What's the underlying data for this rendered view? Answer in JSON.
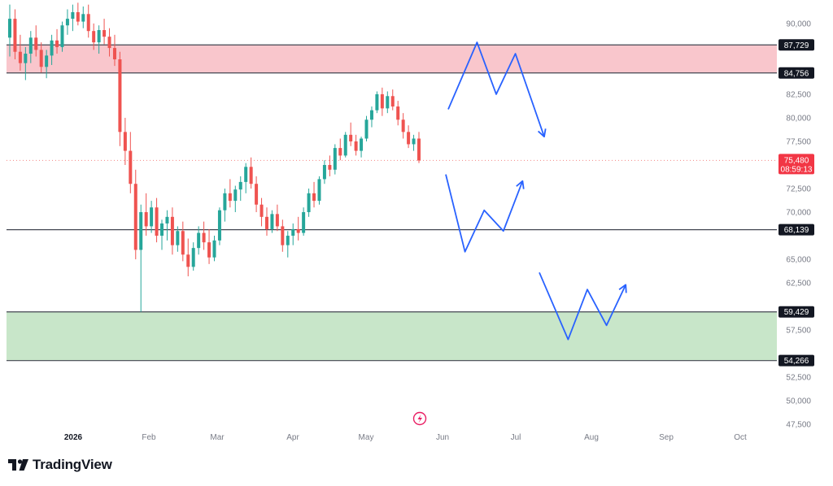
{
  "brand": {
    "name": "TradingView",
    "icon": "tradingview-logo-icon"
  },
  "colors": {
    "up": "#26a69a",
    "down": "#ef5350",
    "resistance_zone": "#f9c6cc",
    "support_zone": "#c8e6c9",
    "level_line": "#434651",
    "level_label_bg": "#131722",
    "price_label_bg": "#f23645",
    "projection": "#2962ff",
    "axis_text": "#787b86"
  },
  "chart_data": {
    "type": "candlestick",
    "y_axis": {
      "ticks": [
        "90,000",
        "82,500",
        "80,000",
        "77,500",
        "72,500",
        "70,000",
        "65,000",
        "62,500",
        "57,500",
        "52,500",
        "50,000",
        "47,500"
      ],
      "tick_values": [
        90000,
        82500,
        80000,
        77500,
        72500,
        70000,
        65000,
        62500,
        57500,
        52500,
        50000,
        47500
      ],
      "range": [
        47000,
        91800
      ]
    },
    "x_axis": {
      "labels": [
        "2026",
        "Feb",
        "Mar",
        "Apr",
        "May",
        "Jun",
        "Jul",
        "Aug",
        "Sep",
        "Oct"
      ],
      "bold_label": "2026"
    },
    "levels": [
      {
        "value": 87729,
        "label": "87,729"
      },
      {
        "value": 84756,
        "label": "84,756"
      },
      {
        "value": 68139,
        "label": "68,139"
      },
      {
        "value": 59429,
        "label": "59,429"
      },
      {
        "value": 54266,
        "label": "54,266"
      }
    ],
    "zones": [
      {
        "type": "resistance",
        "from": 84756,
        "to": 87729
      },
      {
        "type": "support",
        "from": 54266,
        "to": 59429
      }
    ],
    "current_price": {
      "value": 75480,
      "label": "75,480",
      "countdown": "08:59:13"
    },
    "candles": [
      [
        88500,
        92000,
        86500,
        90500
      ],
      [
        90500,
        91500,
        86200,
        87000
      ],
      [
        87000,
        88800,
        85000,
        85800
      ],
      [
        85800,
        87500,
        84000,
        86800
      ],
      [
        86800,
        89200,
        85800,
        88500
      ],
      [
        88500,
        89800,
        86500,
        87200
      ],
      [
        87200,
        88000,
        84800,
        85400
      ],
      [
        85400,
        87200,
        84200,
        86600
      ],
      [
        86600,
        88800,
        85600,
        88200
      ],
      [
        88200,
        89400,
        86800,
        87500
      ],
      [
        87500,
        90200,
        87000,
        89800
      ],
      [
        89800,
        91500,
        88800,
        90500
      ],
      [
        90500,
        92000,
        89200,
        91200
      ],
      [
        91200,
        92200,
        89800,
        90200
      ],
      [
        90200,
        91800,
        89500,
        91000
      ],
      [
        91000,
        92000,
        88500,
        89200
      ],
      [
        89200,
        90000,
        87200,
        88000
      ],
      [
        88000,
        89800,
        86800,
        89300
      ],
      [
        89300,
        90500,
        87800,
        88600
      ],
      [
        88600,
        89500,
        86500,
        87400
      ],
      [
        87400,
        88800,
        85500,
        86200
      ],
      [
        86200,
        87000,
        77000,
        78500
      ],
      [
        78500,
        80000,
        75000,
        76500
      ],
      [
        76500,
        78500,
        72000,
        73000
      ],
      [
        73000,
        74500,
        65000,
        66000
      ],
      [
        66000,
        70800,
        59429,
        70000
      ],
      [
        70000,
        72000,
        67500,
        68500
      ],
      [
        68500,
        71200,
        67800,
        70500
      ],
      [
        70500,
        71500,
        66800,
        67500
      ],
      [
        67500,
        69200,
        66000,
        68800
      ],
      [
        68800,
        70200,
        67000,
        69500
      ],
      [
        69500,
        70500,
        65500,
        66500
      ],
      [
        66500,
        68500,
        65800,
        68000
      ],
      [
        68000,
        69000,
        64800,
        65500
      ],
      [
        65500,
        67200,
        63200,
        64200
      ],
      [
        64200,
        66800,
        63800,
        66200
      ],
      [
        66200,
        68500,
        65500,
        67800
      ],
      [
        67800,
        69000,
        66000,
        66800
      ],
      [
        66800,
        68200,
        64500,
        65200
      ],
      [
        65200,
        67500,
        64800,
        67000
      ],
      [
        67000,
        70500,
        66500,
        70200
      ],
      [
        70200,
        72500,
        69000,
        72000
      ],
      [
        72000,
        73500,
        70500,
        71200
      ],
      [
        71200,
        72800,
        70000,
        72400
      ],
      [
        72400,
        73800,
        71200,
        73200
      ],
      [
        73200,
        75200,
        72000,
        74800
      ],
      [
        74800,
        75800,
        72500,
        73000
      ],
      [
        73000,
        73800,
        70000,
        70800
      ],
      [
        70800,
        71500,
        68500,
        69500
      ],
      [
        69500,
        70500,
        67500,
        68200
      ],
      [
        68200,
        70200,
        67800,
        69800
      ],
      [
        69800,
        70800,
        68000,
        68500
      ],
      [
        68500,
        69200,
        65800,
        66500
      ],
      [
        66500,
        68000,
        65200,
        67500
      ],
      [
        67500,
        68800,
        66500,
        68200
      ],
      [
        68200,
        69500,
        67000,
        67800
      ],
      [
        67800,
        70500,
        67500,
        70000
      ],
      [
        70000,
        72500,
        69500,
        72000
      ],
      [
        72000,
        73200,
        70500,
        71200
      ],
      [
        71200,
        73800,
        70800,
        73500
      ],
      [
        73500,
        75500,
        73000,
        75000
      ],
      [
        75000,
        76000,
        73800,
        74500
      ],
      [
        74500,
        77200,
        74000,
        76800
      ],
      [
        76800,
        77800,
        75500,
        76000
      ],
      [
        76000,
        78500,
        75800,
        78200
      ],
      [
        78200,
        79500,
        77000,
        77500
      ],
      [
        77500,
        78200,
        76000,
        76500
      ],
      [
        76500,
        78000,
        75800,
        77800
      ],
      [
        77800,
        80200,
        77500,
        79800
      ],
      [
        79800,
        81200,
        79000,
        80800
      ],
      [
        80800,
        82800,
        80500,
        82500
      ],
      [
        82500,
        83200,
        80200,
        81000
      ],
      [
        81000,
        82800,
        80500,
        82300
      ],
      [
        82300,
        83000,
        80800,
        81200
      ],
      [
        81200,
        81800,
        79200,
        79800
      ],
      [
        79800,
        80500,
        77800,
        78500
      ],
      [
        78500,
        79200,
        76800,
        77200
      ],
      [
        77200,
        78200,
        76500,
        77800
      ],
      [
        77800,
        78500,
        75200,
        75480
      ]
    ],
    "projections": [
      [
        [
          0,
          80900
        ],
        [
          3,
          88000
        ],
        [
          5,
          82500
        ],
        [
          7,
          86800
        ],
        [
          10,
          78000
        ]
      ],
      [
        [
          0,
          74000
        ],
        [
          2,
          65800
        ],
        [
          4,
          70200
        ],
        [
          6,
          68000
        ],
        [
          8,
          73300
        ]
      ],
      [
        [
          0,
          63600
        ],
        [
          3,
          56500
        ],
        [
          5,
          61800
        ],
        [
          7,
          58000
        ],
        [
          9,
          62300
        ]
      ]
    ]
  }
}
